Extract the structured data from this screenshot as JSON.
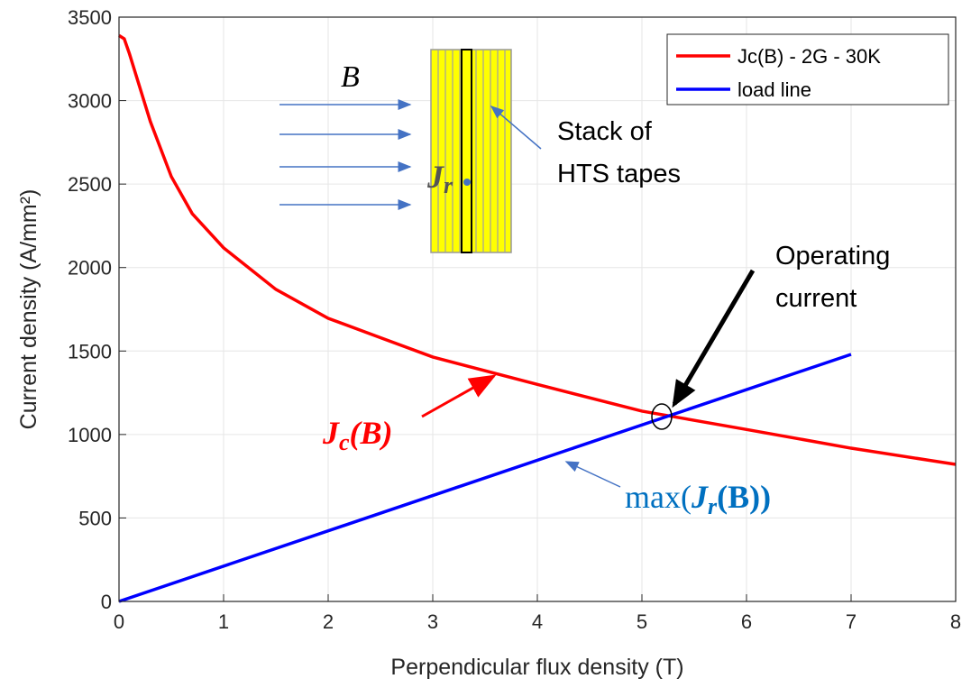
{
  "chart_data": {
    "type": "line",
    "xlabel": "Perpendicular flux density (T)",
    "ylabel": "Current density (A/mm²)",
    "xlim": [
      0,
      8
    ],
    "ylim": [
      0,
      3500
    ],
    "xticks": [
      0,
      1,
      2,
      3,
      4,
      5,
      6,
      7,
      8
    ],
    "yticks": [
      0,
      500,
      1000,
      1500,
      2000,
      2500,
      3000,
      3500
    ],
    "grid": true,
    "legend": "upper right",
    "series": [
      {
        "name": "Jc(B) - 2G - 30K",
        "color": "#ff0000",
        "x": [
          0,
          0.05,
          0.1,
          0.3,
          0.5,
          0.7,
          1,
          1.5,
          2,
          2.5,
          3,
          4,
          5,
          6,
          7,
          8
        ],
        "y": [
          3390,
          3370,
          3280,
          2874,
          2545,
          2323,
          2118,
          1869,
          1696,
          1580,
          1464,
          1300,
          1140,
          1030,
          918,
          821
        ]
      },
      {
        "name": "load line",
        "color": "#0000ff",
        "x": [
          0,
          7
        ],
        "y": [
          0,
          1480
        ]
      }
    ],
    "annotations": {
      "field": "B",
      "stack": [
        "Stack of",
        "HTS tapes"
      ],
      "operating": [
        "Operating",
        "current"
      ],
      "jc": [
        "J",
        "c",
        "(B)"
      ],
      "load": [
        "max(",
        "J",
        "r",
        "(B))"
      ],
      "jr": [
        "J",
        "r"
      ]
    }
  }
}
